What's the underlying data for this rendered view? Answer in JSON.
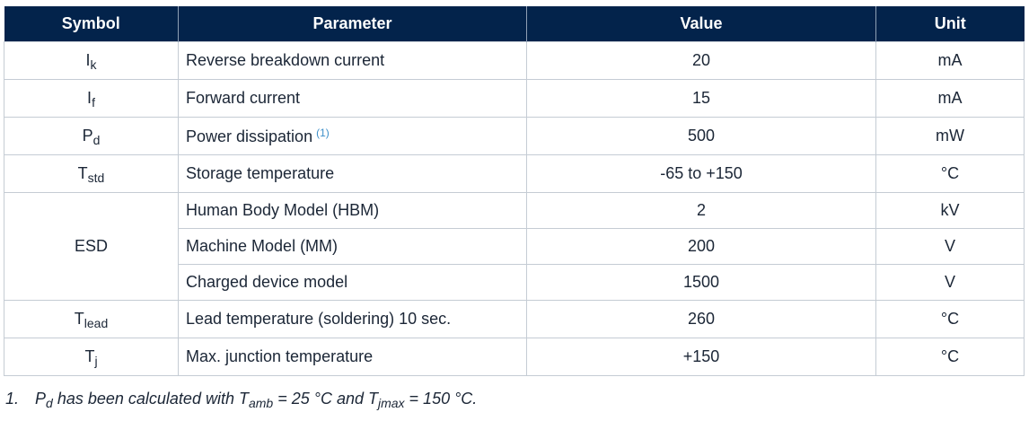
{
  "header_color": "#03234b",
  "columns": [
    "Symbol",
    "Parameter",
    "Value",
    "Unit"
  ],
  "rows": [
    {
      "sym": "I",
      "sub": "k",
      "param": "Reverse breakdown current",
      "value": "20",
      "unit": "mA"
    },
    {
      "sym": "I",
      "sub": "f",
      "param": "Forward current",
      "value": "15",
      "unit": "mA"
    },
    {
      "sym": "P",
      "sub": "d",
      "param": "Power dissipation",
      "note": "(1)",
      "value": "500",
      "unit": "mW"
    },
    {
      "sym": "T",
      "sub": "std",
      "param": "Storage temperature",
      "value": "-65 to +150",
      "unit": "°C"
    }
  ],
  "esd": {
    "sym": "ESD",
    "items": [
      {
        "param": "Human Body Model (HBM)",
        "value": "2",
        "unit": "kV"
      },
      {
        "param": "Machine Model (MM)",
        "value": "200",
        "unit": "V"
      },
      {
        "param": "Charged device model",
        "value": "1500",
        "unit": "V"
      }
    ]
  },
  "rows2": [
    {
      "sym": "T",
      "sub": "lead",
      "param": "Lead temperature (soldering) 10 sec.",
      "value": "260",
      "unit": "°C"
    },
    {
      "sym": "T",
      "sub": "j",
      "param": "Max. junction temperature",
      "value": "+150",
      "unit": "°C"
    }
  ],
  "footnote": {
    "num": "1.",
    "p": "P",
    "p_sub": "d",
    "t1": " has been calculated with ",
    "tamb": "T",
    "tamb_sub": "amb",
    "t2": " = 25 °C and ",
    "tj": "T",
    "tj_sub": "jmax",
    "t3": " = 150 °C."
  }
}
